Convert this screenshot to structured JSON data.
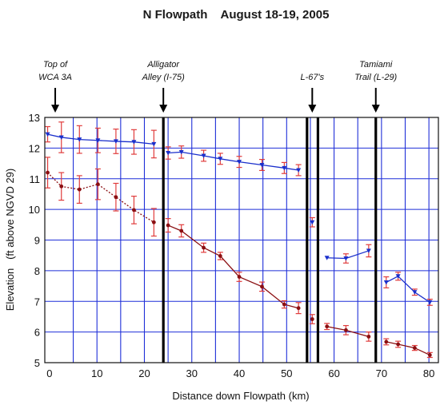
{
  "chart_data": {
    "type": "line",
    "title": "N Flowpath    August 18-19, 2005",
    "xlabel": "Distance down Flowpath (km)",
    "ylabel": "Elevation   (ft above NGVD 29)",
    "xlim": [
      -1,
      82
    ],
    "ylim": [
      5,
      13
    ],
    "x_ticks": [
      "0",
      "10",
      "20",
      "30",
      "40",
      "50",
      "60",
      "70",
      "80"
    ],
    "y_ticks": [
      "5",
      "6",
      "7",
      "8",
      "9",
      "10",
      "11",
      "12",
      "13"
    ],
    "grid": true,
    "colors": {
      "upper": "#1a2fcc",
      "lower": "#8b0f12",
      "errorbar": "#e03c3c",
      "grid": "#1f2fd8",
      "structure": "#000000"
    },
    "structures": [
      {
        "x": 24,
        "label_line1": "Alligator",
        "label_line2": "Alley (I-75)"
      },
      {
        "x": 54.3,
        "label_line1": "",
        "label_line2": ""
      },
      {
        "x": 56.6,
        "label_line1": "",
        "label_line2": ""
      },
      {
        "x": 68.8,
        "label_line1": "Tamiami",
        "label_line2": "Trail  (L-29)"
      }
    ],
    "annotations": [
      {
        "x": 1.2,
        "line1": "Top of",
        "line2": "WCA 3A"
      },
      {
        "x": 55.4,
        "line1": "",
        "line2": "L-67's"
      },
      {
        "x": 24,
        "line1": "Alligator",
        "line2": "Alley (I-75)"
      },
      {
        "x": 68.8,
        "line1": "Tamiami",
        "line2": "Trail  (L-29)"
      }
    ],
    "series": [
      {
        "segments": [
          [
            {
              "x": -0.4,
              "y": 12.45,
              "err": 0.25
            },
            {
              "x": 2.5,
              "y": 12.35,
              "err": 0.5
            },
            {
              "x": 6.3,
              "y": 12.28,
              "err": 0.45
            },
            {
              "x": 10.2,
              "y": 12.25,
              "err": 0.4
            },
            {
              "x": 14,
              "y": 12.22,
              "err": 0.4
            },
            {
              "x": 17.8,
              "y": 12.2,
              "err": 0.4
            },
            {
              "x": 22,
              "y": 12.13,
              "err": 0.45
            }
          ],
          [
            {
              "x": 25,
              "y": 11.84,
              "err": 0.2
            },
            {
              "x": 27.8,
              "y": 11.87,
              "err": 0.2
            },
            {
              "x": 32.5,
              "y": 11.75,
              "err": 0.18
            },
            {
              "x": 36,
              "y": 11.65,
              "err": 0.18
            },
            {
              "x": 40,
              "y": 11.55,
              "err": 0.18
            },
            {
              "x": 44.8,
              "y": 11.45,
              "err": 0.18
            },
            {
              "x": 49.5,
              "y": 11.35,
              "err": 0.18
            },
            {
              "x": 52.5,
              "y": 11.28,
              "err": 0.18
            }
          ],
          [
            {
              "x": 55.4,
              "y": 9.58,
              "err": 0.15
            }
          ],
          [
            {
              "x": 58.5,
              "y": 8.42,
              "err": 0
            },
            {
              "x": 62.5,
              "y": 8.4,
              "err": 0.15
            },
            {
              "x": 67.3,
              "y": 8.65,
              "err": 0.2
            }
          ],
          [
            {
              "x": 71,
              "y": 7.62,
              "err": 0.18
            },
            {
              "x": 73.5,
              "y": 7.82,
              "err": 0.13
            },
            {
              "x": 77,
              "y": 7.3,
              "err": 0.1
            },
            {
              "x": 80.2,
              "y": 6.97,
              "err": 0.1
            }
          ]
        ]
      },
      {
        "segments": [
          [
            {
              "x": -0.4,
              "y": 11.2,
              "err": 0.5
            },
            {
              "x": 2.5,
              "y": 10.75,
              "err": 0.45
            },
            {
              "x": 6.3,
              "y": 10.65,
              "err": 0.45
            },
            {
              "x": 10.2,
              "y": 10.82,
              "err": 0.5
            },
            {
              "x": 14,
              "y": 10.4,
              "err": 0.45
            },
            {
              "x": 17.8,
              "y": 9.98,
              "err": 0.45
            },
            {
              "x": 22,
              "y": 9.58,
              "err": 0.45
            }
          ],
          [
            {
              "x": 25,
              "y": 9.48,
              "err": 0.22
            },
            {
              "x": 27.8,
              "y": 9.3,
              "err": 0.2
            },
            {
              "x": 32.5,
              "y": 8.75,
              "err": 0.15
            },
            {
              "x": 36,
              "y": 8.48,
              "err": 0.12
            },
            {
              "x": 40,
              "y": 7.8,
              "err": 0.15
            },
            {
              "x": 44.8,
              "y": 7.48,
              "err": 0.15
            },
            {
              "x": 49.5,
              "y": 6.9,
              "err": 0.12
            },
            {
              "x": 52.5,
              "y": 6.78,
              "err": 0.18
            }
          ],
          [
            {
              "x": 55.4,
              "y": 6.42,
              "err": 0.15
            }
          ],
          [
            {
              "x": 58.5,
              "y": 6.18,
              "err": 0.1
            },
            {
              "x": 62.5,
              "y": 6.06,
              "err": 0.15
            },
            {
              "x": 67.3,
              "y": 5.85,
              "err": 0.15
            }
          ],
          [
            {
              "x": 71,
              "y": 5.68,
              "err": 0.1
            },
            {
              "x": 73.5,
              "y": 5.6,
              "err": 0.1
            },
            {
              "x": 77,
              "y": 5.48,
              "err": 0.08
            },
            {
              "x": 80.2,
              "y": 5.25,
              "err": 0.08
            }
          ]
        ]
      }
    ]
  }
}
